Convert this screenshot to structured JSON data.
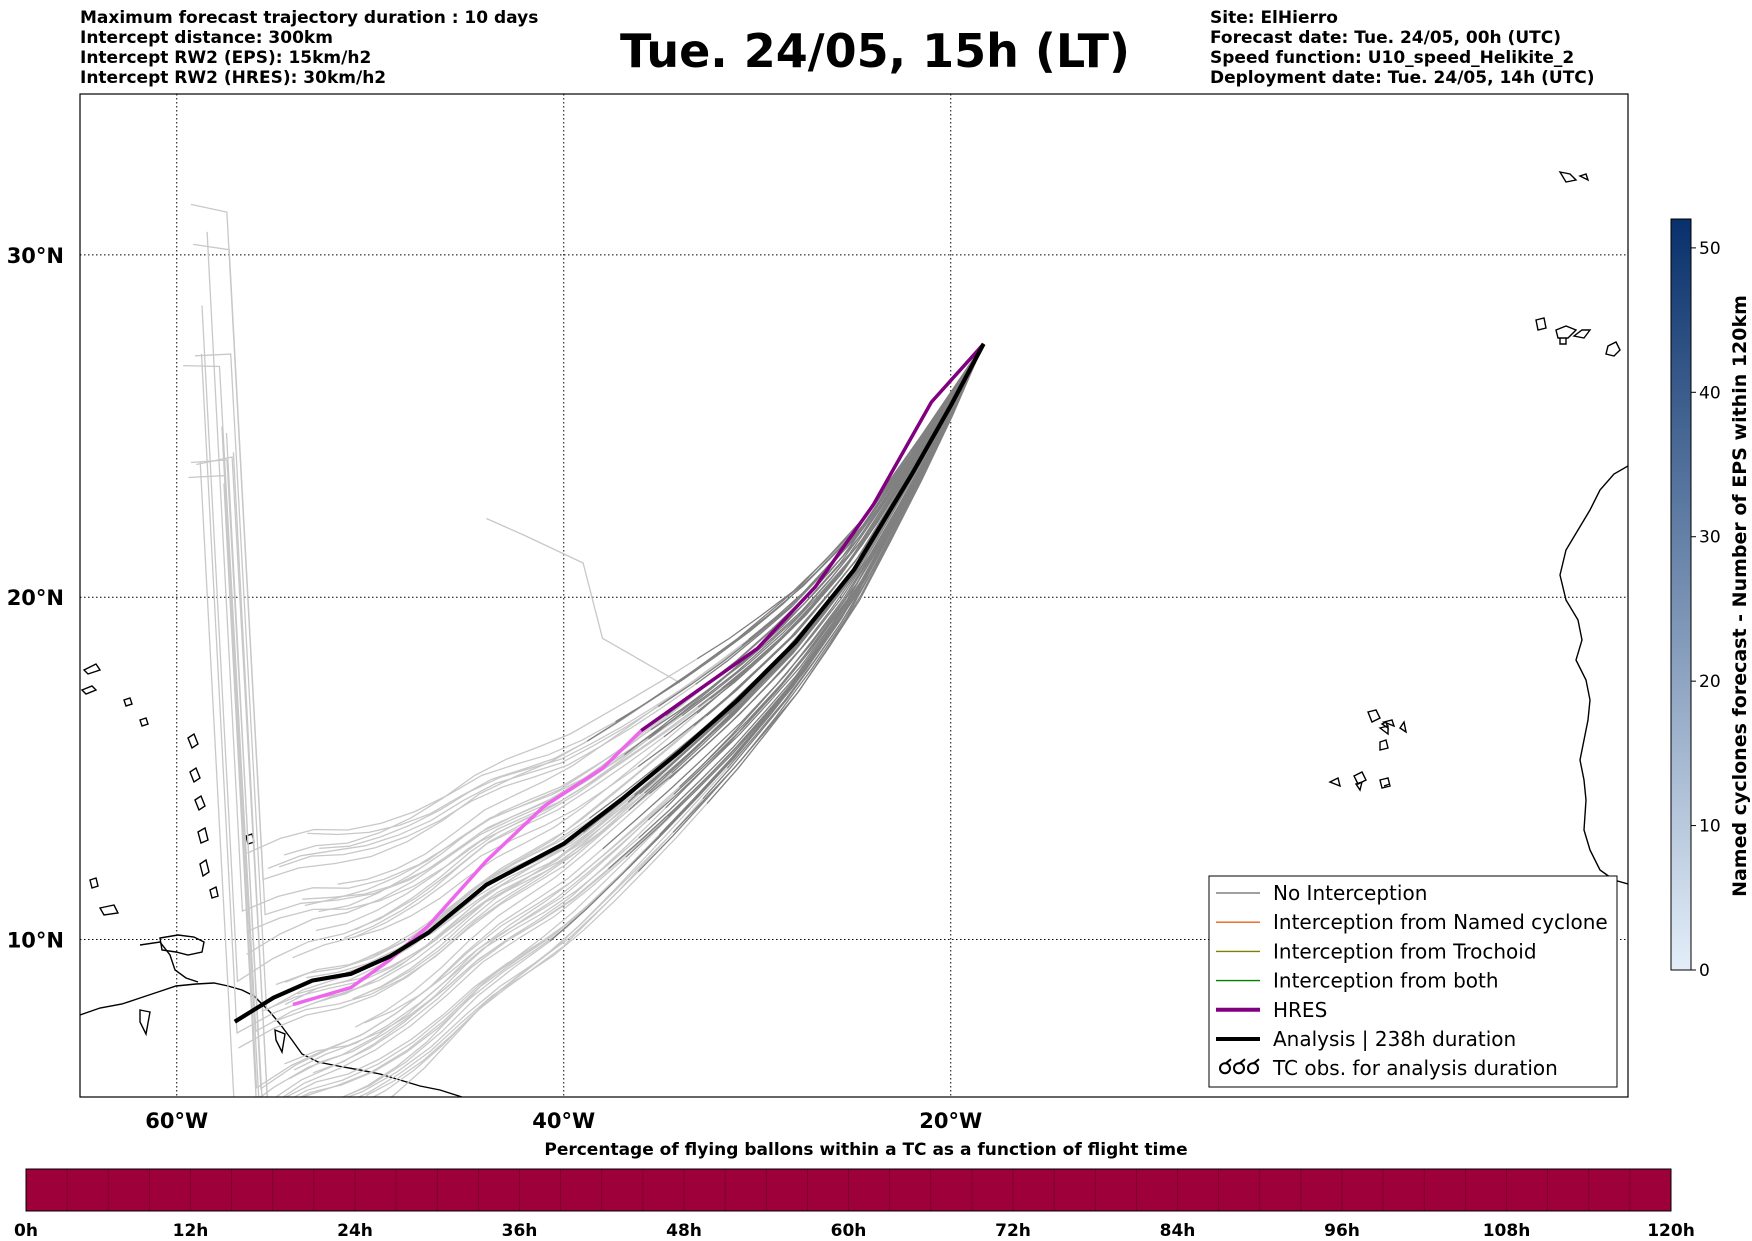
{
  "header": {
    "left_lines": [
      "Maximum forecast trajectory duration : 10 days",
      "Intercept distance: 300km",
      "Intercept RW2 (EPS):  15km/h2",
      "Intercept RW2 (HRES): 30km/h2"
    ],
    "title": "Tue. 24/05, 15h (LT)",
    "right_lines": [
      "Site: ElHierro",
      "Forecast date: Tue. 24/05, 00h (UTC)",
      "Speed function: U10_speed_Helikite_2",
      "Deployment date: Tue. 24/05, 14h (UTC)"
    ]
  },
  "map": {
    "lon_range": [
      -65,
      15
    ],
    "lat_range": [
      5.4,
      34.7
    ],
    "lat_ticks": [
      {
        "value": 10,
        "label": "10°N"
      },
      {
        "value": 20,
        "label": "20°N"
      },
      {
        "value": 30,
        "label": "30°N"
      }
    ],
    "lon_ticks": [
      {
        "value": -60,
        "label": "60°W"
      },
      {
        "value": -40,
        "label": "40°W"
      },
      {
        "value": -20,
        "label": "20°W"
      }
    ],
    "colors": {
      "hres": "#800080",
      "hres_early": "#ee66ee",
      "analysis": "#000000",
      "no_interception": "#808080",
      "eps_early": "#c8c8c8",
      "named_cyclone": "#e8601c",
      "trochoid": "#808000",
      "both": "#008000"
    },
    "hres_track": [
      [
        -54,
        8.1
      ],
      [
        -51,
        8.6
      ],
      [
        -49,
        9.4
      ],
      [
        -47,
        10.4
      ],
      [
        -44,
        12.3
      ],
      [
        -41,
        13.9
      ],
      [
        -38,
        15
      ],
      [
        -36,
        16.1
      ],
      [
        -33,
        17.3
      ],
      [
        -30,
        18.5
      ],
      [
        -27,
        20.3
      ],
      [
        -24,
        22.7
      ],
      [
        -21,
        25.7
      ],
      [
        -18.3,
        27.4
      ]
    ],
    "analysis_track": [
      [
        -57,
        7.6
      ],
      [
        -55,
        8.3
      ],
      [
        -53,
        8.8
      ],
      [
        -51,
        9
      ],
      [
        -49,
        9.5
      ],
      [
        -47,
        10.2
      ],
      [
        -44,
        11.6
      ],
      [
        -40,
        12.8
      ],
      [
        -37,
        14.1
      ],
      [
        -34,
        15.5
      ],
      [
        -31,
        17
      ],
      [
        -28,
        18.7
      ],
      [
        -25,
        20.8
      ],
      [
        -22,
        23.6
      ],
      [
        -20,
        25.6
      ],
      [
        -18.3,
        27.4
      ]
    ]
  },
  "legend": {
    "entries": [
      {
        "label": "No Interception",
        "color": "#808080",
        "kind": "thin"
      },
      {
        "label": "Interception from Named cyclone",
        "color": "#e8601c",
        "kind": "thin"
      },
      {
        "label": "Interception from Trochoid",
        "color": "#808000",
        "kind": "thin"
      },
      {
        "label": "Interception from both",
        "color": "#008000",
        "kind": "thin"
      },
      {
        "label": "HRES",
        "color": "#800080",
        "kind": "thick"
      },
      {
        "label": "Analysis | 238h duration",
        "color": "#000000",
        "kind": "thick"
      },
      {
        "label": "TC obs. for analysis duration",
        "color": "#000000",
        "kind": "tc"
      }
    ]
  },
  "colorbar_right": {
    "label": "Named cyclones forecast - Number of EPS within 120km",
    "min": 0,
    "max": 52,
    "ticks": [
      "0",
      "10",
      "20",
      "30",
      "40",
      "50"
    ],
    "color_low": "#e3eef9",
    "color_high": "#08306b"
  },
  "colorbar_bottom": {
    "title": "Percentage of flying ballons within a TC as a function of flight time",
    "fill_color": "#9e003a",
    "ticks": [
      "0h",
      "12h",
      "24h",
      "36h",
      "48h",
      "60h",
      "72h",
      "84h",
      "96h",
      "108h",
      "120h"
    ]
  }
}
